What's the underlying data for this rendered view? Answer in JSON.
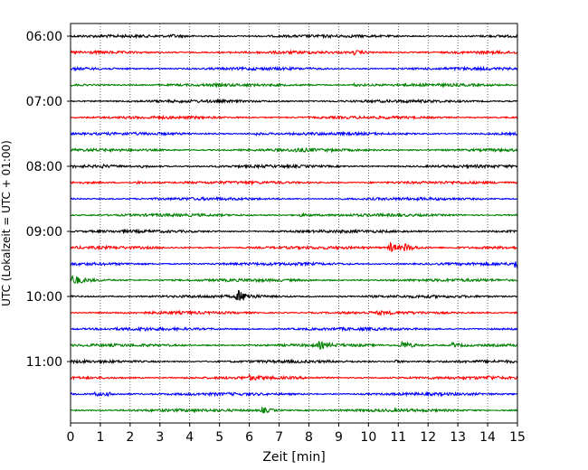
{
  "chart_data": {
    "type": "line",
    "title": "",
    "xlabel": "Zeit  [min]",
    "ylabel": "UTC (Lokalzeit = UTC + 01:00)",
    "xlim": [
      0,
      15
    ],
    "x_ticks": [
      "0",
      "1",
      "2",
      "3",
      "4",
      "5",
      "6",
      "7",
      "8",
      "9",
      "10",
      "11",
      "12",
      "13",
      "14",
      "15"
    ],
    "y_ticks": [
      "06:00",
      "07:00",
      "08:00",
      "09:00",
      "10:00",
      "11:00"
    ],
    "grid": "vertical dotted at each minute",
    "trace_interval_minutes": 15,
    "trace_start": "06:00",
    "trace_count": 24,
    "trace_colors": [
      "#000000",
      "#ff0000",
      "#0000ff",
      "#008000"
    ],
    "traces": [
      {
        "start": "06:00",
        "events": [
          {
            "minute": 3.4,
            "amp": 1.2
          }
        ]
      },
      {
        "start": "06:15",
        "events": [
          {
            "minute": 9.5,
            "amp": 2.0
          }
        ]
      },
      {
        "start": "06:30",
        "events": []
      },
      {
        "start": "06:45",
        "events": [
          {
            "minute": 9.5,
            "amp": 1.4
          }
        ]
      },
      {
        "start": "07:00",
        "events": []
      },
      {
        "start": "07:15",
        "events": []
      },
      {
        "start": "07:30",
        "events": [
          {
            "minute": 6.2,
            "amp": 1.2
          }
        ]
      },
      {
        "start": "07:45",
        "events": [
          {
            "minute": 7.5,
            "amp": 2.0
          }
        ]
      },
      {
        "start": "08:00",
        "events": [
          {
            "minute": 1.0,
            "amp": 1.2
          },
          {
            "minute": 2.4,
            "amp": 1.2
          }
        ]
      },
      {
        "start": "08:15",
        "events": [
          {
            "minute": 2.2,
            "amp": 1.3
          }
        ]
      },
      {
        "start": "08:30",
        "events": []
      },
      {
        "start": "08:45",
        "events": [
          {
            "minute": 7.7,
            "amp": 1.3
          }
        ]
      },
      {
        "start": "09:00",
        "events": []
      },
      {
        "start": "09:15",
        "events": [
          {
            "minute": 10.7,
            "amp": 5.5
          },
          {
            "minute": 11.2,
            "amp": 4.0
          }
        ]
      },
      {
        "start": "09:30",
        "events": [
          {
            "minute": 14.9,
            "amp": 4.5
          }
        ]
      },
      {
        "start": "09:45",
        "events": [
          {
            "minute": 0.05,
            "amp": 6.0
          }
        ]
      },
      {
        "start": "10:00",
        "events": [
          {
            "minute": 5.6,
            "amp": 6.5
          }
        ]
      },
      {
        "start": "10:15",
        "events": [
          {
            "minute": 10.3,
            "amp": 1.3
          }
        ]
      },
      {
        "start": "10:30",
        "events": [
          {
            "minute": 2.2,
            "amp": 1.3
          }
        ]
      },
      {
        "start": "10:45",
        "events": [
          {
            "minute": 8.3,
            "amp": 3.5
          },
          {
            "minute": 11.1,
            "amp": 5.0
          },
          {
            "minute": 12.8,
            "amp": 2.5
          }
        ]
      },
      {
        "start": "11:00",
        "events": [
          {
            "minute": 10.9,
            "amp": 1.3
          }
        ]
      },
      {
        "start": "11:15",
        "events": [
          {
            "minute": 6.0,
            "amp": 2.0
          },
          {
            "minute": 14.0,
            "amp": 1.5
          }
        ]
      },
      {
        "start": "11:30",
        "events": [
          {
            "minute": 0.8,
            "amp": 2.0
          },
          {
            "minute": 1.2,
            "amp": 1.5
          }
        ]
      },
      {
        "start": "11:45",
        "events": [
          {
            "minute": 6.4,
            "amp": 3.2
          }
        ]
      }
    ]
  }
}
